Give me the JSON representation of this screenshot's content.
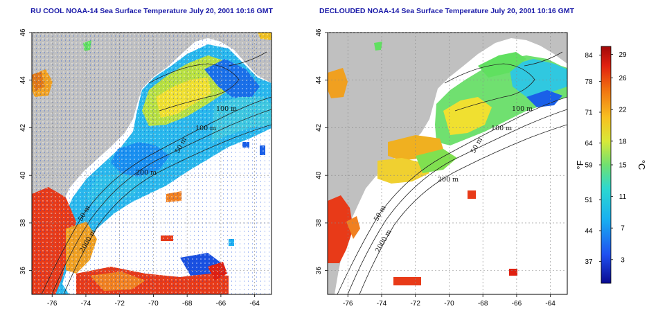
{
  "panels": [
    {
      "title": "RU COOL NOAA-14 Sea Surface Temperature July 20, 2001 10:16 GMT",
      "contour_labels": [
        "100 m",
        "100 m",
        "50 m",
        "200 m",
        "50 m",
        "2000 m"
      ]
    },
    {
      "title": "DECLOUDED NOAA-14 Sea Surface Temperature July 20, 2001 10:16 GMT",
      "contour_labels": [
        "100 m",
        "100 m",
        "50 m",
        "200 m",
        "50 m",
        "2000 m"
      ]
    }
  ],
  "axes": {
    "x_ticks": [
      "-76",
      "-74",
      "-72",
      "-70",
      "-68",
      "-66",
      "-64"
    ],
    "y_ticks": [
      "36",
      "38",
      "40",
      "42",
      "44",
      "46"
    ],
    "x_range": [
      -77.2,
      -63.0
    ],
    "y_range": [
      35.0,
      46.0
    ]
  },
  "colorbar": {
    "fahrenheit_ticks": [
      "84",
      "78",
      "71",
      "64",
      "59",
      "51",
      "44",
      "37"
    ],
    "celsius_ticks": [
      "29",
      "26",
      "22",
      "18",
      "15",
      "11",
      "7",
      "3"
    ],
    "fahrenheit_unit": "°F",
    "celsius_unit": "°C",
    "range_celsius": [
      0,
      30
    ]
  },
  "colors": {
    "land": "#c0c0c0",
    "ocean_no_data": "#ffffff",
    "title": "#1a1aa8",
    "cold": "#1010a0",
    "cool": "#10c8f0",
    "mild": "#60e060",
    "warm": "#f0e020",
    "hot": "#e02010"
  }
}
